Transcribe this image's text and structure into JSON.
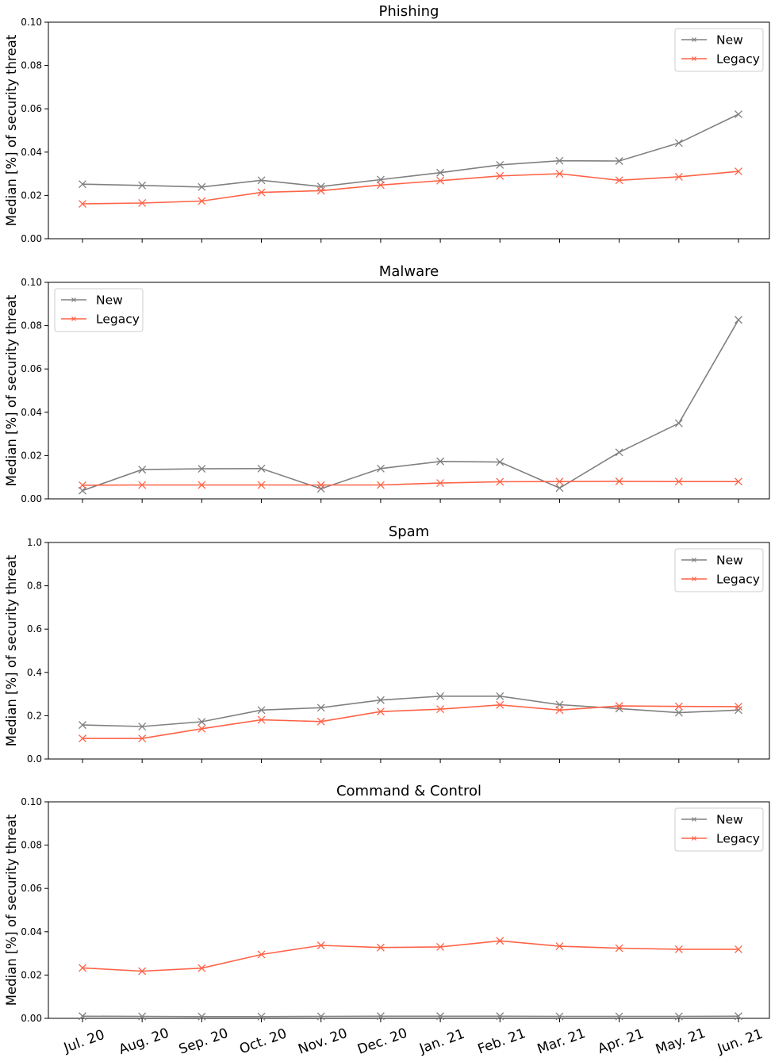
{
  "chart_data": [
    {
      "type": "line",
      "title": "Phishing",
      "ylabel": "Median [%] of security threat",
      "ylim": [
        0,
        0.1
      ],
      "yticks": [
        "0.00",
        "0.02",
        "0.04",
        "0.06",
        "0.08",
        "0.10"
      ],
      "legend_position": "top-right",
      "series": [
        {
          "name": "New",
          "color": "#808080",
          "values": [
            0.0252,
            0.0246,
            0.0239,
            0.027,
            0.0241,
            0.0273,
            0.0305,
            0.0341,
            0.036,
            0.0359,
            0.0442,
            0.0575
          ]
        },
        {
          "name": "Legacy",
          "color": "#ff6347",
          "values": [
            0.0161,
            0.0165,
            0.0174,
            0.0214,
            0.0222,
            0.0248,
            0.0268,
            0.029,
            0.03,
            0.027,
            0.0286,
            0.0311
          ]
        }
      ]
    },
    {
      "type": "line",
      "title": "Malware",
      "ylabel": "Median [%] of security threat",
      "ylim": [
        0,
        0.1
      ],
      "yticks": [
        "0.00",
        "0.02",
        "0.04",
        "0.06",
        "0.08",
        "0.10"
      ],
      "legend_position": "top-left",
      "series": [
        {
          "name": "New",
          "color": "#808080",
          "values": [
            0.0038,
            0.0135,
            0.0139,
            0.014,
            0.0047,
            0.014,
            0.0173,
            0.017,
            0.005,
            0.0215,
            0.0349,
            0.0827
          ]
        },
        {
          "name": "Legacy",
          "color": "#ff6347",
          "values": [
            0.0063,
            0.0064,
            0.0064,
            0.0064,
            0.0064,
            0.0064,
            0.0073,
            0.0079,
            0.008,
            0.0081,
            0.008,
            0.008
          ]
        }
      ]
    },
    {
      "type": "line",
      "title": "Spam",
      "ylabel": "Median [%] of security threat",
      "ylim": [
        0,
        1.0
      ],
      "yticks": [
        "0.0",
        "0.2",
        "0.4",
        "0.6",
        "0.8",
        "1.0"
      ],
      "legend_position": "top-right",
      "series": [
        {
          "name": "New",
          "color": "#808080",
          "values": [
            0.157,
            0.15,
            0.172,
            0.226,
            0.237,
            0.272,
            0.29,
            0.29,
            0.251,
            0.233,
            0.214,
            0.226
          ]
        },
        {
          "name": "Legacy",
          "color": "#ff6347",
          "values": [
            0.095,
            0.095,
            0.14,
            0.181,
            0.173,
            0.219,
            0.23,
            0.25,
            0.226,
            0.245,
            0.243,
            0.242
          ]
        }
      ]
    },
    {
      "type": "line",
      "title": "Command & Control",
      "ylabel": "Median [%] of security threat",
      "ylim": [
        0,
        0.1
      ],
      "yticks": [
        "0.00",
        "0.02",
        "0.04",
        "0.06",
        "0.08",
        "0.10"
      ],
      "legend_position": "top-right",
      "series": [
        {
          "name": "New",
          "color": "#808080",
          "values": [
            0.001,
            0.0009,
            0.0008,
            0.0008,
            0.0009,
            0.001,
            0.001,
            0.001,
            0.0009,
            0.0009,
            0.0009,
            0.001
          ]
        },
        {
          "name": "Legacy",
          "color": "#ff6347",
          "values": [
            0.0233,
            0.0218,
            0.0232,
            0.0295,
            0.0337,
            0.0327,
            0.033,
            0.0358,
            0.0333,
            0.0324,
            0.0319,
            0.0319
          ]
        }
      ]
    }
  ],
  "x_categories": [
    "Jul. 20",
    "Aug. 20",
    "Sep. 20",
    "Oct. 20",
    "Nov. 20",
    "Dec. 20",
    "Jan. 21",
    "Feb. 21",
    "Mar. 21",
    "Apr. 21",
    "May. 21",
    "Jun. 21"
  ]
}
